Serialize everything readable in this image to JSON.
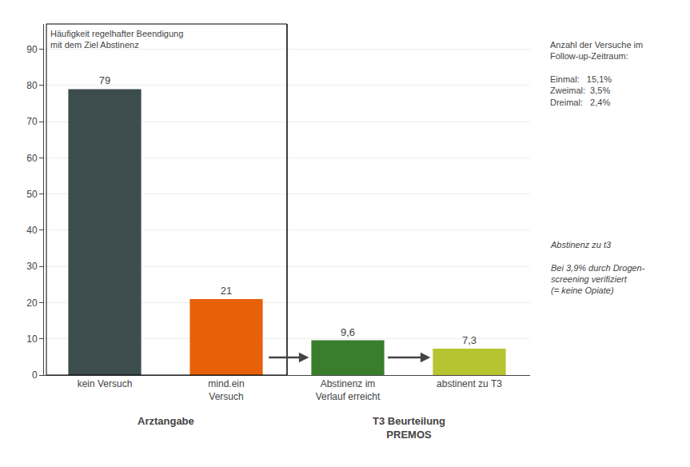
{
  "chart_data": {
    "type": "bar",
    "categories": [
      "kein Versuch",
      "mind.ein\nVersuch",
      "Abstinenz im\nVerlauf erreicht",
      "abstinent zu T3"
    ],
    "values": [
      79,
      21,
      9.6,
      7.3
    ],
    "value_labels": [
      "79",
      "21",
      "9,6",
      "7,3"
    ],
    "colors": [
      "#3d4d4d",
      "#e8610a",
      "#3a7d2c",
      "#b5c430"
    ],
    "data_labels": true,
    "ylim": [
      0,
      97
    ],
    "yticks": [
      0,
      10,
      20,
      30,
      40,
      50,
      60,
      70,
      80,
      90
    ],
    "grid": true,
    "annotations": [
      "Arztangabe",
      "T3 Beurteilung\nPREMOS",
      "Häufigkeit regelhafter Beendigung\nmit dem Ziel Abstinenz",
      "Anzahl der Versuche im\nFollow-up-Zeitraum:\n\nEinmal:   15,1%\nZweimal:  3,5%\nDreimal:   2,4%",
      "Abstinenz zu t3\n\nBei 3,9% durch Drogen-\nscreening verifiziert\n(= keine Opiate)"
    ]
  }
}
